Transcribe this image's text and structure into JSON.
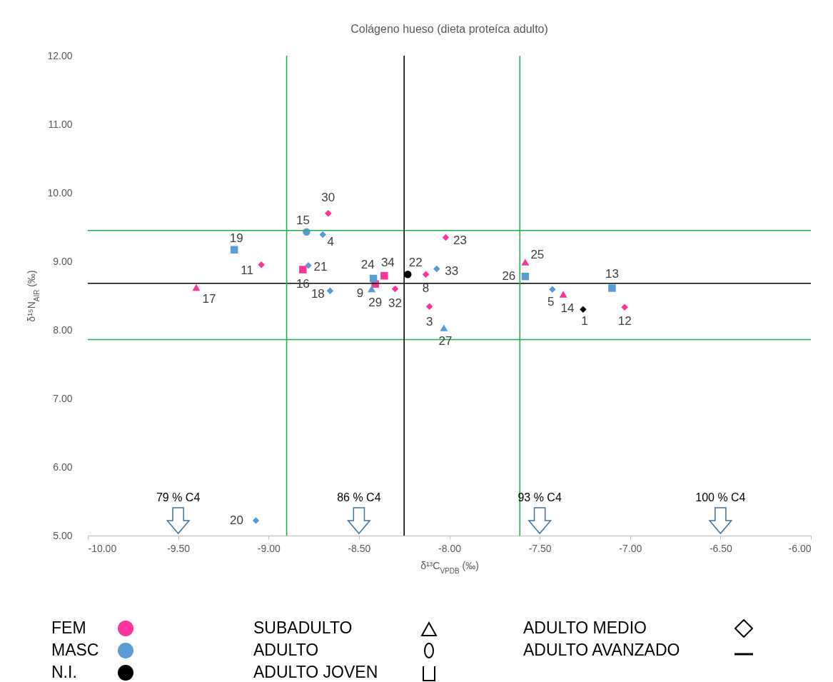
{
  "chart_data": {
    "type": "scatter",
    "title": "Colágeno hueso (dieta proteíca adulto)",
    "xlabel": "δ¹³C$_{VPDB}$ (‰)",
    "ylabel": "δ¹⁵N$_{AIR}$ (‰)",
    "xlim": [
      -10,
      -6
    ],
    "ylim": [
      5,
      12
    ],
    "xticks": [
      {
        "value": -10,
        "label": "-10.00"
      },
      {
        "value": -9.5,
        "label": "-9.50"
      },
      {
        "value": -9,
        "label": "-9.00"
      },
      {
        "value": -8.5,
        "label": "-8.50"
      },
      {
        "value": -8,
        "label": "-8.00"
      },
      {
        "value": -7.5,
        "label": "-7.50"
      },
      {
        "value": -7,
        "label": "-7.00"
      },
      {
        "value": -6.5,
        "label": "-6.50"
      },
      {
        "value": -6,
        "label": "-6.00"
      }
    ],
    "yticks": [
      {
        "value": 5,
        "label": "5.00"
      },
      {
        "value": 6,
        "label": "6.00"
      },
      {
        "value": 7,
        "label": "7.00"
      },
      {
        "value": 8,
        "label": "8.00"
      },
      {
        "value": 9,
        "label": "9.00"
      },
      {
        "value": 10,
        "label": "10.00"
      },
      {
        "value": 11,
        "label": "11.00"
      },
      {
        "value": 12,
        "label": "12.00"
      }
    ],
    "series": [
      {
        "color": "#ff3399",
        "marker": "diamond",
        "x": [
          -7.03,
          -8.11,
          -8.02,
          -8.13,
          -8.3,
          -8.67,
          -9.04
        ],
        "values": [
          8.33,
          8.34,
          9.35,
          8.81,
          8.6,
          9.7,
          8.95
        ]
      },
      {
        "color": "#ff3399",
        "marker": "square",
        "x": [
          -8.36,
          -8.41,
          -8.81
        ],
        "values": [
          8.79,
          8.67,
          8.88
        ]
      },
      {
        "color": "#ff3399",
        "marker": "triangle",
        "x": [
          -7.58,
          -7.37,
          -9.4
        ],
        "values": [
          8.99,
          8.52,
          8.62
        ]
      },
      {
        "color": "#5b9bd5",
        "marker": "diamond",
        "x": [
          -7.43,
          -8.07,
          -8.7,
          -8.78,
          -8.66,
          -9.07
        ],
        "values": [
          8.59,
          8.89,
          9.39,
          8.94,
          8.57,
          5.22
        ]
      },
      {
        "color": "#5b9bd5",
        "marker": "square",
        "x": [
          -7.1,
          -7.58,
          -8.42,
          -9.19
        ],
        "values": [
          8.61,
          8.78,
          8.75,
          9.17
        ]
      },
      {
        "color": "#5b9bd5",
        "marker": "triangle",
        "x": [
          -8.03,
          -8.43
        ],
        "values": [
          8.03,
          8.6
        ]
      },
      {
        "color": "#5b9bd5",
        "marker": "circle",
        "x": [
          -8.79
        ],
        "values": [
          9.43
        ]
      },
      {
        "color": "#000000",
        "marker": "diamond",
        "x": [
          -7.26
        ],
        "values": [
          8.3
        ]
      },
      {
        "color": "#000000",
        "marker": "circle",
        "x": [
          -8.23
        ],
        "values": [
          8.81
        ]
      }
    ],
    "ref_lines": [
      {
        "axis": "x",
        "value": -8.9,
        "color": "#22b14c"
      },
      {
        "axis": "x",
        "value": -7.61,
        "color": "#22b14c"
      },
      {
        "axis": "x",
        "value": -8.25,
        "color": "#000000"
      },
      {
        "axis": "y",
        "value": 9.45,
        "color": "#22b14c"
      },
      {
        "axis": "y",
        "value": 7.86,
        "color": "#22b14c"
      },
      {
        "axis": "y",
        "value": 8.68,
        "color": "#000000"
      }
    ],
    "annotations": [
      "FEM",
      "MASC",
      "N.I.",
      "SUBADULTO",
      "ADULTO",
      "ADULTO JOVEN",
      "ADULTO MEDIO",
      "ADULTO AVANZADO",
      "79 % C4",
      "86 % C4",
      "93 % C4",
      "100 % C4",
      {
        "text": "12",
        "x": -7.03,
        "y": 8.33
      },
      {
        "text": "3",
        "x": -8.11,
        "y": 8.34
      },
      {
        "text": "23",
        "x": -8.02,
        "y": 9.35
      },
      {
        "text": "8",
        "x": -8.13,
        "y": 8.81
      },
      {
        "text": "32",
        "x": -8.3,
        "y": 8.6
      },
      {
        "text": "30",
        "x": -8.67,
        "y": 9.7
      },
      {
        "text": "11",
        "x": -9.04,
        "y": 8.95
      },
      {
        "text": "34",
        "x": -8.36,
        "y": 8.79
      },
      {
        "text": "29",
        "x": -8.41,
        "y": 8.67
      },
      {
        "text": "16",
        "x": -8.81,
        "y": 8.88
      },
      {
        "text": "25",
        "x": -7.58,
        "y": 8.99
      },
      {
        "text": "14",
        "x": -7.37,
        "y": 8.52
      },
      {
        "text": "17",
        "x": -9.4,
        "y": 8.62
      },
      {
        "text": "5",
        "x": -7.43,
        "y": 8.59
      },
      {
        "text": "33",
        "x": -8.07,
        "y": 8.89
      },
      {
        "text": "4",
        "x": -8.7,
        "y": 9.39
      },
      {
        "text": "21",
        "x": -8.78,
        "y": 8.94
      },
      {
        "text": "18",
        "x": -8.66,
        "y": 8.57
      },
      {
        "text": "20",
        "x": -9.07,
        "y": 5.22
      },
      {
        "text": "13",
        "x": -7.1,
        "y": 8.61
      },
      {
        "text": "26",
        "x": -7.58,
        "y": 8.78
      },
      {
        "text": "24",
        "x": -8.42,
        "y": 8.75
      },
      {
        "text": "19",
        "x": -9.19,
        "y": 9.17
      },
      {
        "text": "27",
        "x": -8.03,
        "y": 8.03
      },
      {
        "text": "9",
        "x": -8.43,
        "y": 8.6
      },
      {
        "text": "15",
        "x": -8.79,
        "y": 9.43
      },
      {
        "text": "1",
        "x": -7.26,
        "y": 8.3
      },
      {
        "text": "22",
        "x": -8.23,
        "y": 8.81
      }
    ]
  }
}
